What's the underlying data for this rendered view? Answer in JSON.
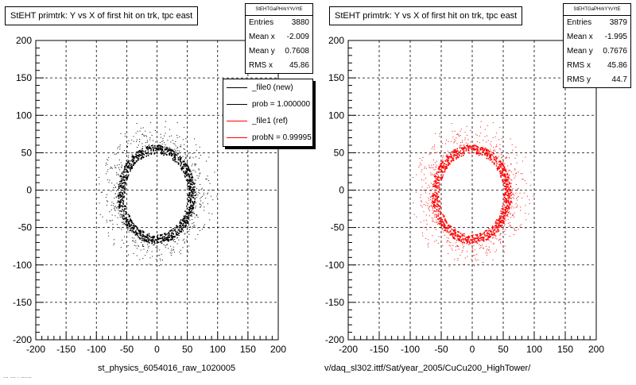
{
  "chart_data": [
    {
      "type": "scatter",
      "title": "StEHT primtrk: Y vs X of first hit on trk, tpc east",
      "xlabel": "st_physics_6054016_raw_1020005",
      "ylabel": "",
      "xlim": [
        -200,
        200
      ],
      "ylim": [
        -200,
        200
      ],
      "x_ticks": [
        "-200",
        "-150",
        "-100",
        "-50",
        "0",
        "50",
        "100",
        "150",
        "200"
      ],
      "y_ticks": [
        "200",
        "150",
        "100",
        "50",
        "0",
        "-50",
        "-100",
        "-150",
        "-200"
      ],
      "grid": true,
      "marker_color": "#000000",
      "ring": {
        "center_x": -2.0,
        "center_y": -5.0,
        "radius_x": 58,
        "radius_y": 60,
        "halo_extent": 45
      },
      "stats": {
        "name": "StEHTGaPHrkYYvYtE",
        "rows": [
          {
            "label": "Entries",
            "value": "3880"
          },
          {
            "label": "Mean x",
            "value": "-2.009"
          },
          {
            "label": "Mean y",
            "value": "0.7608"
          },
          {
            "label": "RMS x",
            "value": "45.86"
          }
        ]
      },
      "legend": [
        {
          "label": "_file0 (new)",
          "color": "#000000"
        },
        {
          "label": "prob = 1.000000",
          "color": "#000000"
        },
        {
          "label": "_file1 (ref)",
          "color": "#ff0000"
        },
        {
          "label": "probN = 0.99995",
          "color": "#ff0000"
        }
      ]
    },
    {
      "type": "scatter",
      "title": "StEHT primtrk: Y vs X of first hit on trk, tpc east",
      "xlabel": "v/daq_sl302.ittf/Sat/year_2005/CuCu200_HighTower/",
      "ylabel": "",
      "xlim": [
        -200,
        200
      ],
      "ylim": [
        -200,
        200
      ],
      "x_ticks": [
        "-200",
        "-150",
        "-100",
        "-50",
        "0",
        "50",
        "100",
        "150",
        "200"
      ],
      "y_ticks": [
        "200",
        "150",
        "100",
        "50",
        "0",
        "-50",
        "-100",
        "-150",
        "-200"
      ],
      "grid": true,
      "marker_color": "#ff0000",
      "ring": {
        "center_x": -2.0,
        "center_y": -5.0,
        "radius_x": 58,
        "radius_y": 60,
        "halo_extent": 45
      },
      "stats": {
        "name": "StEHTGaPHrkYYvYtE",
        "rows": [
          {
            "label": "Entries",
            "value": "3879"
          },
          {
            "label": "Mean x",
            "value": "-1.995"
          },
          {
            "label": "Mean y",
            "value": "0.7676"
          },
          {
            "label": "RMS x",
            "value": "45.86"
          },
          {
            "label": "RMS y",
            "value": "44.7"
          }
        ]
      }
    }
  ],
  "footer_text": "... ... . ......"
}
